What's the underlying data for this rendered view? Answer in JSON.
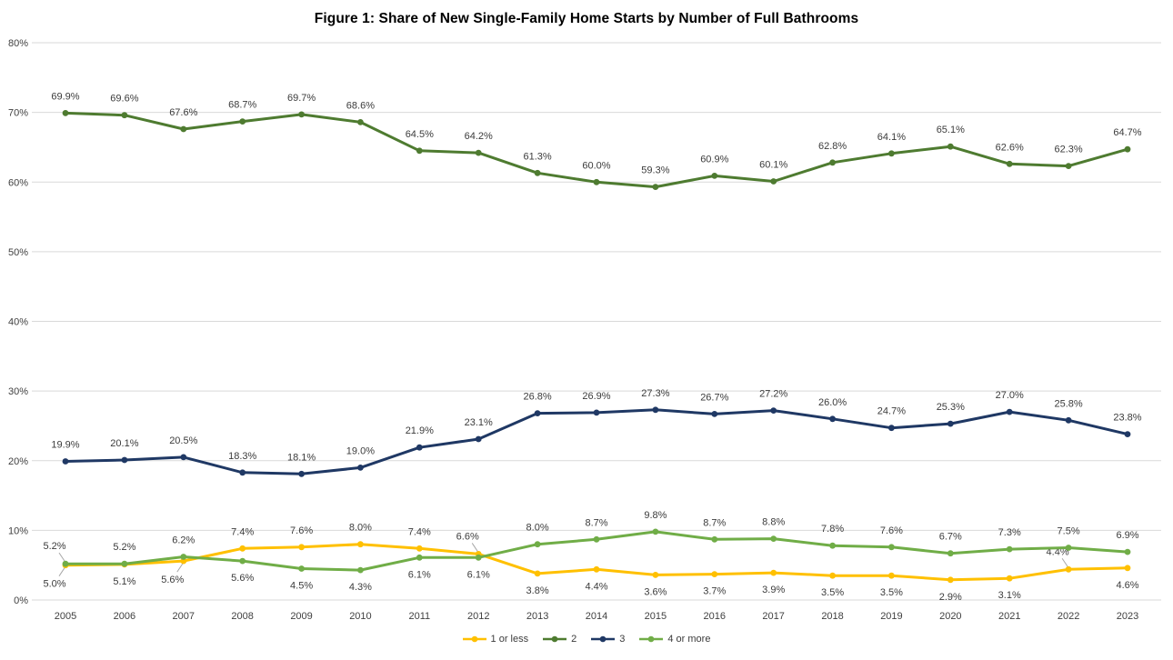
{
  "title": "Figure 1: Share of New Single-Family Home Starts by Number of Full Bathrooms",
  "colors": {
    "background": "#ffffff",
    "gridline": "#d9d9d9",
    "axis_text": "#404040",
    "data_label_text": "#3b3b3b",
    "leader_line": "#a6a6a6",
    "series_1_or_less": "#ffc000",
    "series_2": "#4e7b30",
    "series_3": "#1f3864",
    "series_4_or_more": "#70ad47"
  },
  "chart_data": {
    "type": "line",
    "x": [
      2005,
      2006,
      2007,
      2008,
      2009,
      2010,
      2011,
      2012,
      2013,
      2014,
      2015,
      2016,
      2017,
      2018,
      2019,
      2020,
      2021,
      2022,
      2023
    ],
    "ylim": [
      0,
      80
    ],
    "y_ticks": [
      0,
      10,
      20,
      30,
      40,
      50,
      60,
      70,
      80
    ],
    "y_tick_suffix": "%",
    "grid": true,
    "legend_position": "bottom",
    "data_labels": true,
    "series": [
      {
        "name": "1 or less",
        "color": "#ffc000",
        "values": [
          5.0,
          5.1,
          5.6,
          7.4,
          7.6,
          8.0,
          7.4,
          6.6,
          3.8,
          4.4,
          3.6,
          3.7,
          3.9,
          3.5,
          3.5,
          2.9,
          3.1,
          4.4,
          4.6
        ],
        "label_positions": [
          "below",
          "below",
          "below",
          "above",
          "above",
          "above",
          "above",
          "above",
          "below",
          "below",
          "below",
          "below",
          "below",
          "below",
          "below",
          "below",
          "below",
          "above",
          "below"
        ],
        "leader_indices": [
          0,
          2,
          7,
          17
        ]
      },
      {
        "name": "2",
        "color": "#4e7b30",
        "values": [
          69.9,
          69.6,
          67.6,
          68.7,
          69.7,
          68.6,
          64.5,
          64.2,
          61.3,
          60.0,
          59.3,
          60.9,
          60.1,
          62.8,
          64.1,
          65.1,
          62.6,
          62.3,
          64.7
        ],
        "label_positions": [
          "above",
          "above",
          "above",
          "above",
          "above",
          "above",
          "above",
          "above",
          "above",
          "above",
          "above",
          "above",
          "above",
          "above",
          "above",
          "above",
          "above",
          "above",
          "above"
        ],
        "leader_indices": []
      },
      {
        "name": "3",
        "color": "#1f3864",
        "values": [
          19.9,
          20.1,
          20.5,
          18.3,
          18.1,
          19.0,
          21.9,
          23.1,
          26.8,
          26.9,
          27.3,
          26.7,
          27.2,
          26.0,
          24.7,
          25.3,
          27.0,
          25.8,
          23.8
        ],
        "label_positions": [
          "above",
          "above",
          "above",
          "above",
          "above",
          "above",
          "above",
          "above",
          "above",
          "above",
          "above",
          "above",
          "above",
          "above",
          "above",
          "above",
          "above",
          "above",
          "above"
        ],
        "leader_indices": []
      },
      {
        "name": "4 or more",
        "color": "#70ad47",
        "values": [
          5.2,
          5.2,
          6.2,
          5.6,
          4.5,
          4.3,
          6.1,
          6.1,
          8.0,
          8.7,
          9.8,
          8.7,
          8.8,
          7.8,
          7.6,
          6.7,
          7.3,
          7.5,
          6.9
        ],
        "label_positions": [
          "above",
          "above",
          "above",
          "below",
          "below",
          "below",
          "below",
          "below",
          "above",
          "above",
          "above",
          "above",
          "above",
          "above",
          "above",
          "above",
          "above",
          "above",
          "above"
        ],
        "leader_indices": [
          0
        ]
      }
    ]
  }
}
